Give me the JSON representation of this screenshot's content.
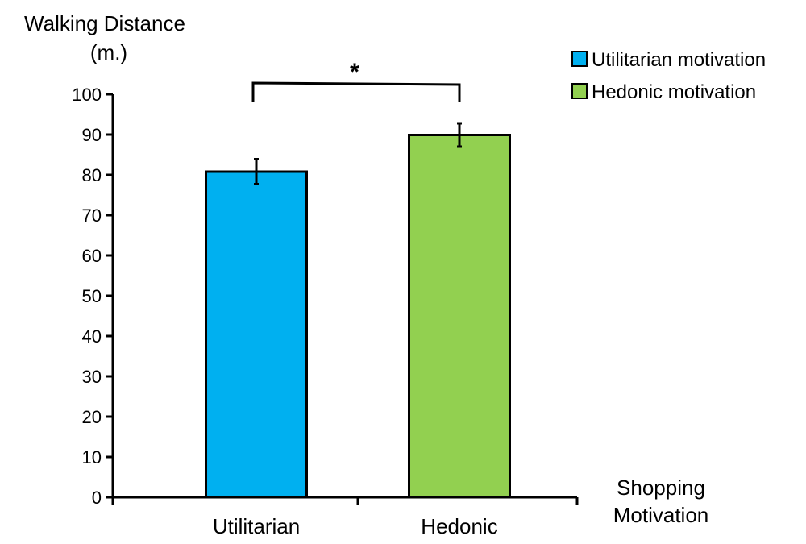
{
  "chart_data": {
    "type": "bar",
    "title": "",
    "ylabel_lines": [
      "Walking Distance",
      "(m.)"
    ],
    "xlabel_lines": [
      "Shopping",
      "Motivation"
    ],
    "categories": [
      "Utilitarian",
      "Hedonic"
    ],
    "values": [
      80.8,
      89.9
    ],
    "error": [
      3.1,
      2.9
    ],
    "colors": [
      "#00b0f0",
      "#92d050"
    ],
    "legend": [
      {
        "label": "Utilitarian motivation",
        "color": "#00b0f0"
      },
      {
        "label": "Hedonic motivation",
        "color": "#92d050"
      }
    ],
    "legend_position": "top-right",
    "ylim": [
      0,
      100
    ],
    "yticks": [
      "0",
      "10",
      "20",
      "30",
      "40",
      "50",
      "60",
      "70",
      "80",
      "90",
      "100"
    ],
    "significance": {
      "label": "*",
      "between": [
        "Utilitarian",
        "Hedonic"
      ]
    },
    "grid": false
  }
}
